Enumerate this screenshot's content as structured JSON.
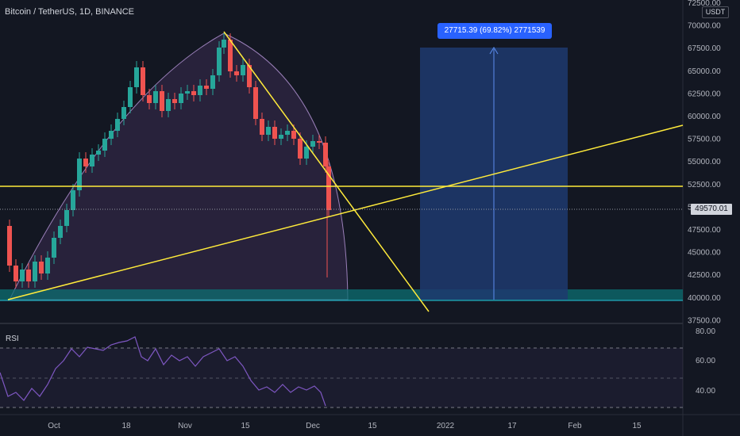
{
  "header": {
    "symbol_title": "Bitcoin / TetherUS, 1D, BINANCE"
  },
  "price_axis": {
    "currency_button": "USDT",
    "labels": [
      "72500.00",
      "70000.00",
      "67500.00",
      "65000.00",
      "62500.00",
      "60000.00",
      "57500.00",
      "55000.00",
      "52500.00",
      "50000.00",
      "47500.00",
      "45000.00",
      "42500.00",
      "40000.00",
      "37500.00"
    ],
    "last_price": "49570.01"
  },
  "rsi_panel": {
    "title": "RSI",
    "labels": [
      "80.00",
      "60.00",
      "40.00"
    ]
  },
  "time_axis": {
    "labels": [
      "Oct",
      "18",
      "Nov",
      "15",
      "Dec",
      "15",
      "2022",
      "17",
      "Feb",
      "15"
    ]
  },
  "drawings": {
    "measure_label": "27715.39 (69.82%) 2771539",
    "horizontal_level": 52000,
    "support_zone": [
      39700,
      40900
    ]
  },
  "colors": {
    "background": "#131722",
    "up_candle": "#26a69a",
    "down_candle": "#ef5350",
    "trendline": "#ffeb3b",
    "measure_fill": "#1f3a6e",
    "measure_label_bg": "#2962ff",
    "rsi_line": "#7e57c2",
    "support_zone": "#0c6f72"
  }
}
